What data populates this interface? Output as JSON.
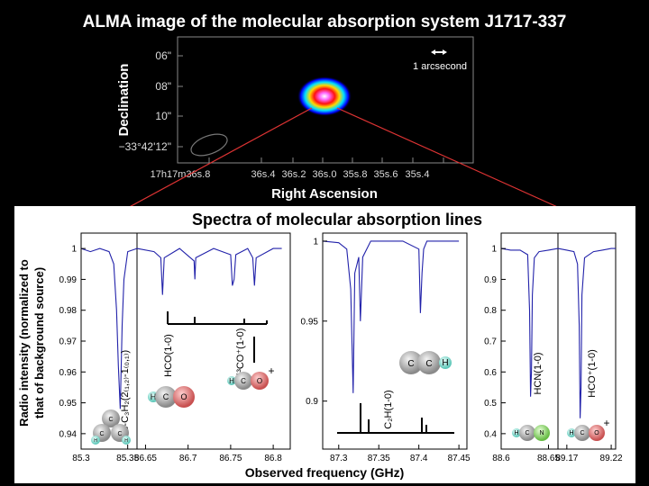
{
  "title": "ALMA image of the molecular absorption system J1717-337",
  "image": {
    "ylabel": "Declination",
    "xlabel": "Right Ascension",
    "y_ticks": [
      "06\"",
      "08\"",
      "10\"",
      "−33°42'12\""
    ],
    "x_ticks": [
      "17h17m36s.8",
      "36s.4",
      "36s.2",
      "36s.0",
      "35s.8",
      "35s.6",
      "35s.4"
    ],
    "scalebar_label": "1 arcsecond"
  },
  "spectra_title": "Spectra of molecular absorption lines",
  "spectra_ylabel_line1": "Radio intensity (normalized to",
  "spectra_ylabel_line2": "that of background source)",
  "spectra_xlabel": "Observed frequency (GHz)",
  "molecules": {
    "c_c3h2": {
      "atoms": [
        "C",
        "C",
        "C",
        "H",
        "H"
      ]
    },
    "hco": {
      "atoms": [
        "H",
        "C",
        "O"
      ]
    },
    "h13co": {
      "atoms": [
        "H",
        "C",
        "O"
      ],
      "charge": "+"
    },
    "c2h": {
      "atoms": [
        "C",
        "C",
        "H"
      ]
    },
    "hcn": {
      "atoms": [
        "H",
        "C",
        "N"
      ]
    },
    "hcoplus": {
      "atoms": [
        "H",
        "C",
        "O"
      ],
      "charge": "+"
    }
  },
  "chart_data": [
    {
      "type": "line",
      "panel": "c-C3H2",
      "x": [
        85.3,
        85.31,
        85.32,
        85.33,
        85.335,
        85.338,
        85.34,
        85.342,
        85.344,
        85.346,
        85.35,
        85.36
      ],
      "y": [
        1.0,
        0.999,
        1.0,
        0.999,
        0.995,
        0.98,
        0.962,
        0.948,
        0.975,
        0.99,
        0.999,
        1.0
      ],
      "xlim": [
        85.3,
        85.36
      ],
      "ylim": [
        0.935,
        1.005
      ],
      "x_ticks": [
        85.3,
        85.35
      ],
      "y_ticks": [
        0.94,
        0.95,
        0.96,
        0.97,
        0.98,
        0.99,
        1
      ],
      "line_label": "c-C₃H₂(2₍₁,₂₎-1₍₀,₁₎)"
    },
    {
      "type": "line",
      "panel": "HCO / H13CO+",
      "x": [
        86.64,
        86.66,
        86.668,
        86.67,
        86.672,
        86.69,
        86.707,
        86.708,
        86.709,
        86.73,
        86.75,
        86.752,
        86.754,
        86.756,
        86.77,
        86.776,
        86.778,
        86.78,
        86.8,
        86.81
      ],
      "y": [
        1.0,
        0.999,
        0.997,
        0.985,
        0.997,
        1.0,
        0.996,
        0.99,
        0.997,
        1.0,
        0.998,
        0.988,
        0.99,
        0.998,
        1.0,
        0.997,
        0.988,
        0.997,
        1.0,
        1.0
      ],
      "xlim": [
        86.64,
        86.82
      ],
      "x_ticks": [
        86.65,
        86.7,
        86.75,
        86.8
      ],
      "line_labels": [
        "HCO(1-0)",
        "H¹³CO⁺(1-0)"
      ]
    },
    {
      "type": "line",
      "panel": "C2H",
      "x": [
        87.28,
        87.3,
        87.31,
        87.315,
        87.318,
        87.32,
        87.325,
        87.327,
        87.33,
        87.34,
        87.36,
        87.38,
        87.4,
        87.402,
        87.404,
        87.406,
        87.41,
        87.43,
        87.45
      ],
      "y": [
        1.0,
        0.999,
        0.995,
        0.97,
        0.905,
        0.98,
        0.99,
        0.95,
        0.99,
        1.0,
        1.0,
        1.0,
        0.995,
        0.955,
        0.98,
        0.995,
        1.0,
        1.0,
        1.0
      ],
      "xlim": [
        87.28,
        87.46
      ],
      "ylim": [
        0.87,
        1.005
      ],
      "x_ticks": [
        87.3,
        87.35,
        87.4,
        87.45
      ],
      "y_ticks": [
        0.9,
        0.95,
        1
      ],
      "line_label": "C₂H(1-0)"
    },
    {
      "type": "line",
      "panel": "HCN",
      "x": [
        88.6,
        88.61,
        88.62,
        88.628,
        88.63,
        88.631,
        88.632,
        88.633,
        88.635,
        88.64,
        88.65,
        88.66
      ],
      "y": [
        1.0,
        0.995,
        0.995,
        0.98,
        0.8,
        0.52,
        0.6,
        0.85,
        0.97,
        0.99,
        0.995,
        1.0
      ],
      "xlim": [
        88.6,
        88.66
      ],
      "ylim": [
        0.35,
        1.05
      ],
      "x_ticks": [
        88.6,
        88.65
      ],
      "y_ticks": [
        0.4,
        0.5,
        0.6,
        0.7,
        0.8,
        0.9,
        1
      ],
      "line_label": "HCN(1-0)"
    },
    {
      "type": "line",
      "panel": "HCO+",
      "x": [
        89.16,
        89.17,
        89.178,
        89.182,
        89.184,
        89.185,
        89.186,
        89.187,
        89.19,
        89.2,
        89.21,
        89.22,
        89.225
      ],
      "y": [
        1.0,
        0.995,
        0.99,
        0.95,
        0.75,
        0.45,
        0.55,
        0.85,
        0.97,
        0.99,
        0.995,
        1.0,
        1.0
      ],
      "xlim": [
        89.16,
        89.225
      ],
      "ylim": [
        0.35,
        1.05
      ],
      "x_ticks": [
        89.17,
        89.22
      ],
      "line_label": "HCO⁺(1-0)"
    }
  ]
}
